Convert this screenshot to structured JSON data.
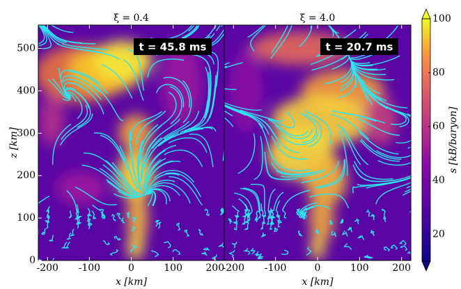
{
  "chart_data": [
    {
      "type": "heatmap",
      "title": "ξ = 0.4",
      "annotation": "t =  45.8 ms",
      "xlabel": "x [km]",
      "ylabel": "z [km]",
      "xlim": [
        -222,
        222
      ],
      "ylim": [
        0,
        555
      ],
      "xticks": [
        -200,
        -100,
        0,
        100,
        200
      ],
      "yticks": [
        0,
        100,
        200,
        300,
        400,
        500
      ]
    },
    {
      "type": "heatmap",
      "title": "ξ = 4.0",
      "annotation": "t =  20.7 ms",
      "xlabel": "x [km]",
      "xlim": [
        -222,
        222
      ],
      "ylim": [
        0,
        555
      ],
      "xticks": [
        -200,
        -100,
        0,
        100,
        200
      ]
    }
  ],
  "colorbar": {
    "label": "s [kB/baryon]",
    "lim": [
      10,
      100
    ],
    "ticks": [
      20,
      40,
      60,
      80,
      100
    ]
  }
}
